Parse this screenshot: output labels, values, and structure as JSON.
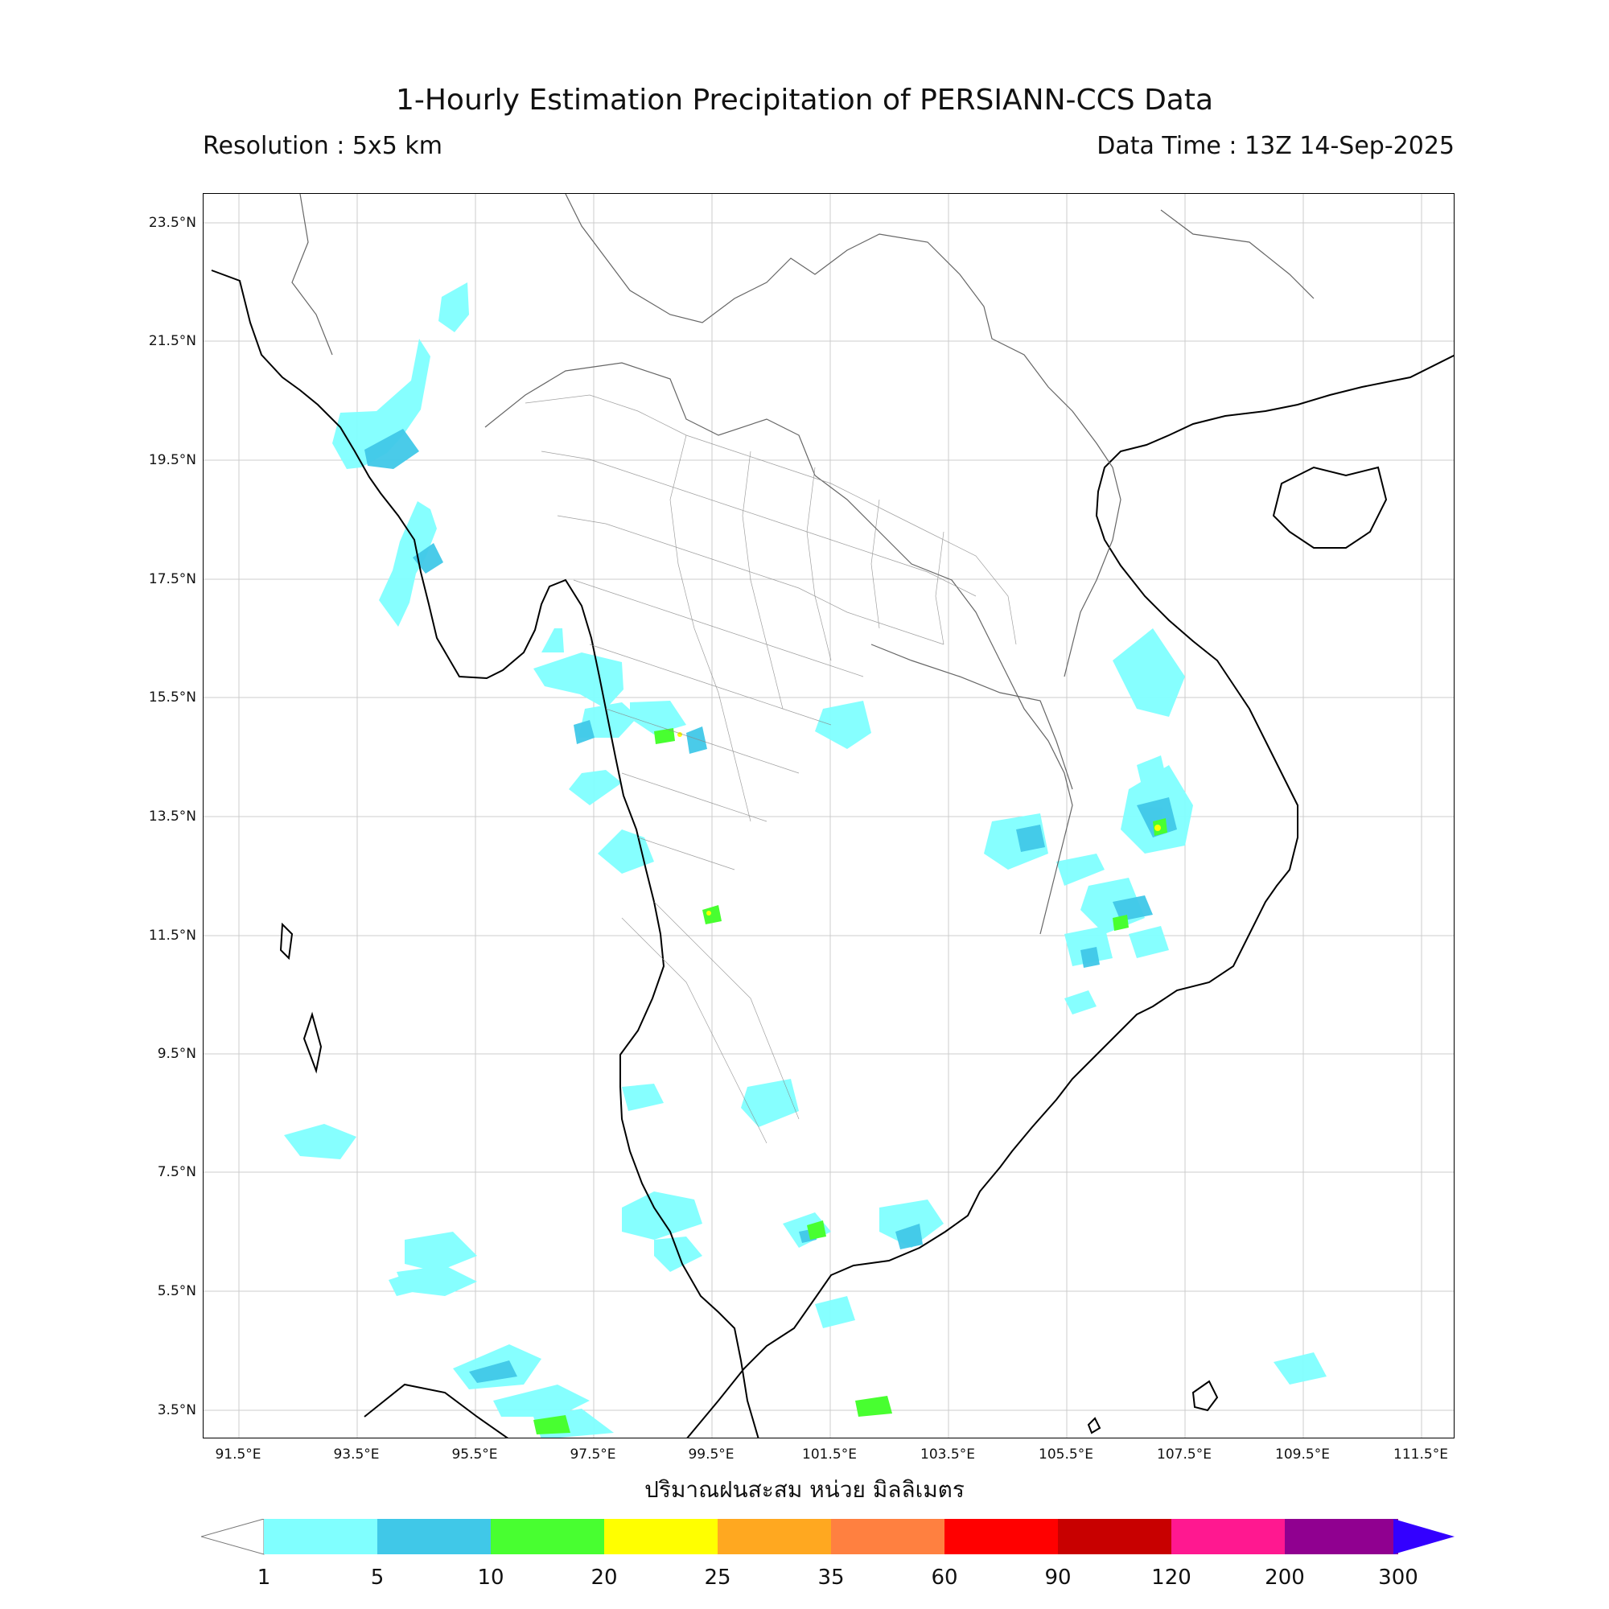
{
  "header": {
    "title": "1-Hourly Estimation Precipitation of PERSIANN-CCS Data",
    "resolution": "Resolution : 5x5 km",
    "data_time": "Data Time : 13Z 14-Sep-2025"
  },
  "map": {
    "lat_ticks": [
      "23.5°N",
      "21.5°N",
      "19.5°N",
      "17.5°N",
      "15.5°N",
      "13.5°N",
      "11.5°N",
      "9.5°N",
      "7.5°N",
      "5.5°N",
      "3.5°N"
    ],
    "lon_ticks": [
      "91.5°E",
      "93.5°E",
      "95.5°E",
      "97.5°E",
      "99.5°E",
      "101.5°E",
      "103.5°E",
      "105.5°E",
      "107.5°E",
      "109.5°E",
      "111.5°E"
    ],
    "x_axis_label": "ปริมาณฝนสะสม หน่วย มิลลิเมตร",
    "coastline_color": "#000000",
    "border_color": "#666666",
    "grid_color": "#cccccc"
  },
  "colorbar": {
    "ticks": [
      "1",
      "5",
      "10",
      "20",
      "25",
      "35",
      "60",
      "90",
      "120",
      "200",
      "300"
    ],
    "colors": [
      "#80ffff",
      "#40c8e8",
      "#48ff30",
      "#ffff00",
      "#ffa820",
      "#ff8040",
      "#ff0000",
      "#c80000",
      "#ff1890",
      "#900090"
    ],
    "under_color": "#ffffff",
    "over_color": "#3300ff"
  }
}
